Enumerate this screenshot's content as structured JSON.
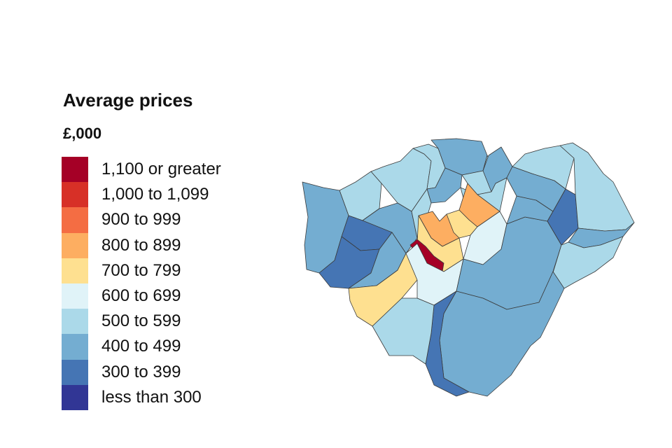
{
  "legend": {
    "title": "Average prices",
    "unit": "£,000",
    "bins": [
      {
        "label": "1,100 or greater",
        "color": "#a50026"
      },
      {
        "label": "1,000 to 1,099",
        "color": "#d73027"
      },
      {
        "label": "900 to 999",
        "color": "#f46d43"
      },
      {
        "label": "800 to 899",
        "color": "#fdae61"
      },
      {
        "label": "700 to 799",
        "color": "#fee090"
      },
      {
        "label": "600 to 699",
        "color": "#e0f3f8"
      },
      {
        "label": "500 to 599",
        "color": "#abd9e9"
      },
      {
        "label": "400 to 499",
        "color": "#74add1"
      },
      {
        "label": "300 to 399",
        "color": "#4575b4"
      },
      {
        "label": "less than 300",
        "color": "#313695"
      }
    ]
  },
  "map": {
    "regions": [
      {
        "bin": 6
      },
      {
        "bin": 7
      },
      {
        "bin": 6
      },
      {
        "bin": 6
      },
      {
        "bin": 7
      },
      {
        "bin": 8
      },
      {
        "bin": 7
      },
      {
        "bin": 8
      },
      {
        "bin": 7
      },
      {
        "bin": 7
      },
      {
        "bin": 6
      },
      {
        "bin": 6
      },
      {
        "bin": 7
      },
      {
        "bin": 4
      },
      {
        "bin": 6
      },
      {
        "bin": 3
      },
      {
        "bin": 4
      },
      {
        "bin": 3
      },
      {
        "bin": 5
      },
      {
        "bin": 0
      },
      {
        "bin": 4
      },
      {
        "bin": 5
      },
      {
        "bin": 7
      },
      {
        "bin": 7
      },
      {
        "bin": 7
      },
      {
        "bin": 6
      },
      {
        "bin": 8
      },
      {
        "bin": 6
      },
      {
        "bin": 7
      },
      {
        "bin": 6
      },
      {
        "bin": 7
      },
      {
        "bin": 8
      },
      {
        "bin": 6
      }
    ]
  }
}
